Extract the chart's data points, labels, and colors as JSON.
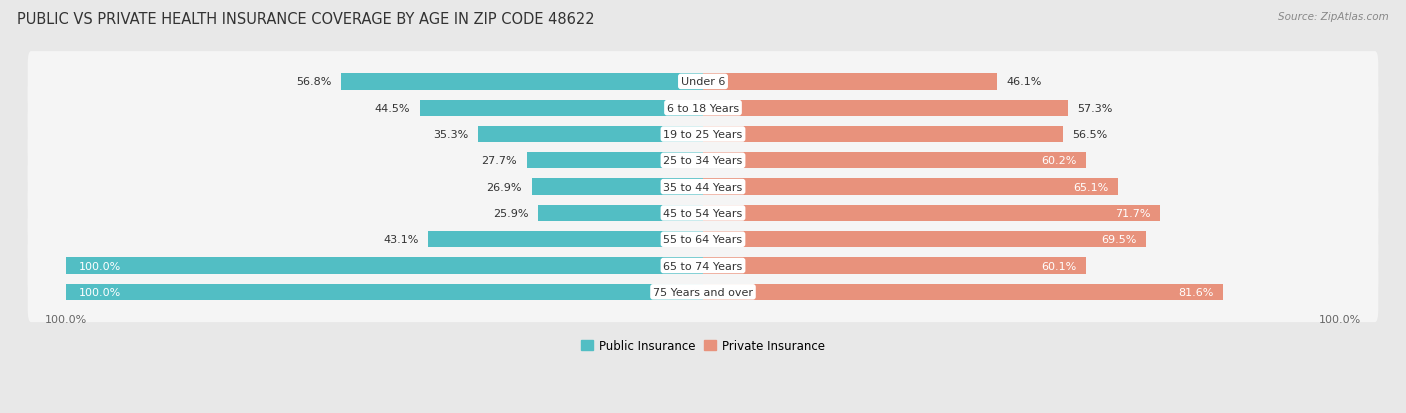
{
  "title": "PUBLIC VS PRIVATE HEALTH INSURANCE COVERAGE BY AGE IN ZIP CODE 48622",
  "source": "Source: ZipAtlas.com",
  "categories": [
    "Under 6",
    "6 to 18 Years",
    "19 to 25 Years",
    "25 to 34 Years",
    "35 to 44 Years",
    "45 to 54 Years",
    "55 to 64 Years",
    "65 to 74 Years",
    "75 Years and over"
  ],
  "public_values": [
    56.8,
    44.5,
    35.3,
    27.7,
    26.9,
    25.9,
    43.1,
    100.0,
    100.0
  ],
  "private_values": [
    46.1,
    57.3,
    56.5,
    60.2,
    65.1,
    71.7,
    69.5,
    60.1,
    81.6
  ],
  "public_color": "#52bec4",
  "private_color": "#e8927c",
  "background_color": "#e8e8e8",
  "bar_background": "#f5f5f5",
  "bar_height": 0.62,
  "title_fontsize": 10.5,
  "label_fontsize": 8,
  "category_fontsize": 8,
  "private_inside_threshold": 58.0
}
